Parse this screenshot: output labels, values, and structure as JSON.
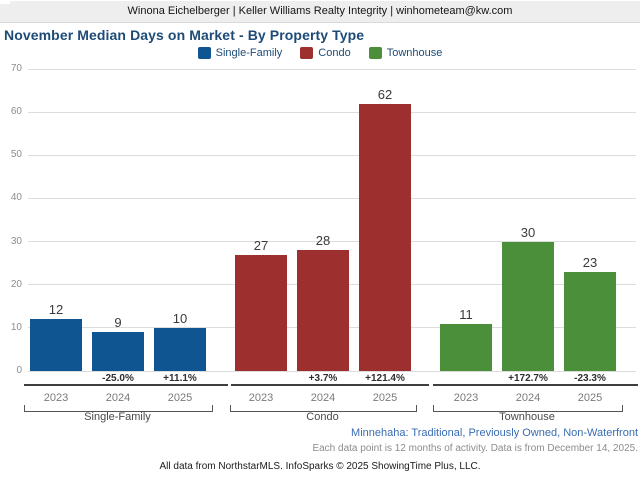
{
  "header": {
    "broker_line": "Winona Eichelberger | Keller Williams Realty Integrity | winhometeam@kw.com"
  },
  "title": "November Median Days on Market - By Property Type",
  "legend": [
    {
      "label": "Single-Family",
      "color": "#0e5591"
    },
    {
      "label": "Condo",
      "color": "#9e2f2f"
    },
    {
      "label": "Townhouse",
      "color": "#4b8f3a"
    }
  ],
  "chart_data": {
    "type": "bar",
    "title": "November Median Days on Market - By Property Type",
    "categories": [
      "2023",
      "2024",
      "2025"
    ],
    "series": [
      {
        "name": "Single-Family",
        "color": "#0e5591",
        "values": [
          12,
          9,
          10
        ],
        "pct_change": [
          null,
          "-25.0%",
          "+11.1%"
        ]
      },
      {
        "name": "Condo",
        "color": "#9e2f2f",
        "values": [
          27,
          28,
          62
        ],
        "pct_change": [
          null,
          "+3.7%",
          "+121.4%"
        ]
      },
      {
        "name": "Townhouse",
        "color": "#4b8f3a",
        "values": [
          11,
          30,
          23
        ],
        "pct_change": [
          null,
          "+172.7%",
          "-23.3%"
        ]
      }
    ],
    "ylim": [
      0,
      70
    ],
    "yticks": [
      0,
      10,
      20,
      30,
      40,
      50,
      60,
      70
    ],
    "grid": true,
    "legend_position": "top",
    "ylabel": "",
    "xlabel": ""
  },
  "footer": {
    "filter_line": "Minnehaha: Traditional, Previously Owned, Non-Waterfront",
    "data_note": "Each data point is 12 months of activity. Data is from December 14, 2025.",
    "attribution": "All data from NorthstarMLS. InfoSparks © 2025 ShowingTime Plus, LLC."
  }
}
